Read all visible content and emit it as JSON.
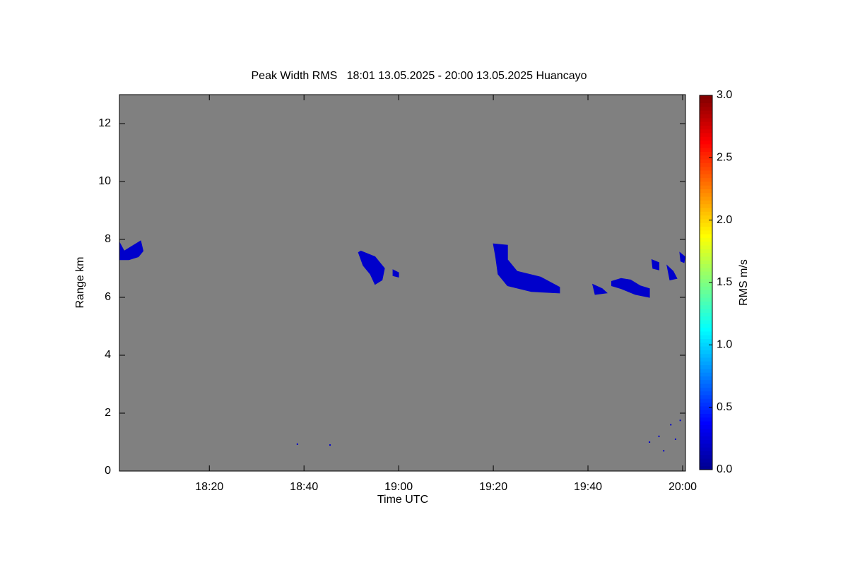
{
  "chart_data": {
    "type": "heatmap",
    "title": "Peak Width RMS   18:01 13.05.2025 - 20:00 13.05.2025 Huancayo",
    "x_label": "Time UTC",
    "y_label": "Range km",
    "colorbar_label": "RMS m/s",
    "background": "#808080",
    "colormap": [
      "#00008f",
      "#0000ff",
      "#00ffff",
      "#ffff00",
      "#ff0000",
      "#7f0000"
    ],
    "xlim": [
      1081,
      1200.6
    ],
    "xticks": [
      {
        "value": 1100,
        "label": "18:20"
      },
      {
        "value": 1120,
        "label": "18:40"
      },
      {
        "value": 1140,
        "label": "19:00"
      },
      {
        "value": 1160,
        "label": "19:20"
      },
      {
        "value": 1180,
        "label": "19:40"
      },
      {
        "value": 1200,
        "label": "20:00"
      }
    ],
    "ylim": [
      0,
      13
    ],
    "yticks": [
      0,
      2,
      4,
      6,
      8,
      10,
      12
    ],
    "clim": [
      0,
      3
    ],
    "cticks": [
      {
        "value": 0,
        "label": "0.0"
      },
      0.5,
      {
        "value": 1,
        "label": "1.0"
      },
      1.5,
      {
        "value": 2,
        "label": "2.0"
      },
      2.5,
      {
        "value": 3,
        "label": "3.0"
      }
    ],
    "echoes": [
      {
        "time": [
          1081,
          1082,
          1084,
          1085.5,
          1086,
          1085,
          1083,
          1081
        ],
        "range": [
          7.9,
          7.6,
          7.8,
          7.95,
          7.6,
          7.4,
          7.3,
          7.3
        ],
        "value": 0.2
      },
      {
        "time": [
          1131.5,
          1132,
          1135,
          1136,
          1137,
          1136.5,
          1135,
          1134,
          1132.5
        ],
        "range": [
          7.55,
          7.6,
          7.4,
          7.2,
          7.0,
          6.6,
          6.45,
          6.8,
          7.1
        ],
        "value": 0.2
      },
      {
        "time": [
          1138.8,
          1140,
          1140,
          1138.8
        ],
        "range": [
          6.95,
          6.85,
          6.7,
          6.75
        ],
        "value": 0.2
      },
      {
        "time": [
          1160,
          1163,
          1163,
          1165,
          1170,
          1174,
          1174,
          1168,
          1163,
          1161,
          1160.5
        ],
        "range": [
          7.85,
          7.8,
          7.3,
          6.9,
          6.7,
          6.35,
          6.15,
          6.2,
          6.4,
          6.8,
          7.4
        ],
        "value": 0.2
      },
      {
        "time": [
          1181,
          1183,
          1184,
          1181.5
        ],
        "range": [
          6.45,
          6.3,
          6.15,
          6.1
        ],
        "value": 0.2
      },
      {
        "time": [
          1185,
          1187,
          1189,
          1191,
          1193,
          1193,
          1190,
          1187,
          1185
        ],
        "range": [
          6.55,
          6.65,
          6.6,
          6.4,
          6.3,
          6.0,
          6.1,
          6.3,
          6.4
        ],
        "value": 0.2
      },
      {
        "time": [
          1196.7,
          1198,
          1198.8,
          1197.3
        ],
        "range": [
          7.1,
          6.9,
          6.65,
          6.6
        ],
        "value": 0.2
      },
      {
        "time": [
          1199.4,
          1200.5,
          1200.3,
          1199.6
        ],
        "range": [
          7.55,
          7.4,
          7.2,
          7.25
        ],
        "value": 0.2
      },
      {
        "time": [
          1193.5,
          1195,
          1195,
          1193.7
        ],
        "range": [
          7.3,
          7.2,
          6.95,
          7.0
        ],
        "value": 0.2
      }
    ],
    "points": {
      "time": [
        1118.6,
        1125.5,
        1193,
        1195,
        1197.5,
        1199.5,
        1196,
        1198.5
      ],
      "range": [
        0.93,
        0.9,
        1.0,
        1.2,
        1.6,
        1.75,
        0.7,
        1.1
      ],
      "values": [
        0.2,
        0.2,
        0.2,
        0.2,
        0.2,
        0.2,
        0.2,
        0.2
      ]
    }
  }
}
